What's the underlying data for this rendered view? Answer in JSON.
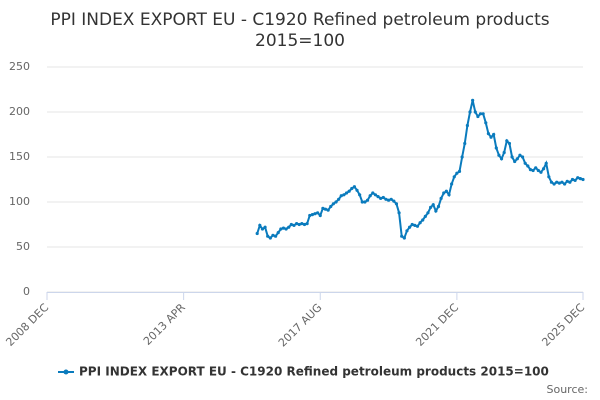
{
  "chart_data": {
    "type": "line",
    "title": "PPI INDEX EXPORT EU - C1920 Refined petroleum products",
    "subtitle": "2015=100",
    "source": "Source:",
    "x": [
      "2015-08",
      "2015-09",
      "2015-10",
      "2015-11",
      "2015-12",
      "2016-01",
      "2016-02",
      "2016-03",
      "2016-04",
      "2016-05",
      "2016-06",
      "2016-07",
      "2016-08",
      "2016-09",
      "2016-10",
      "2016-11",
      "2016-12",
      "2017-01",
      "2017-02",
      "2017-03",
      "2017-04",
      "2017-05",
      "2017-06",
      "2017-07",
      "2017-08",
      "2017-09",
      "2017-10",
      "2017-11",
      "2017-12",
      "2018-01",
      "2018-02",
      "2018-03",
      "2018-04",
      "2018-05",
      "2018-06",
      "2018-07",
      "2018-08",
      "2018-09",
      "2018-10",
      "2018-11",
      "2018-12",
      "2019-01",
      "2019-02",
      "2019-03",
      "2019-04",
      "2019-05",
      "2019-06",
      "2019-07",
      "2019-08",
      "2019-09",
      "2019-10",
      "2019-11",
      "2019-12",
      "2020-01",
      "2020-02",
      "2020-03",
      "2020-04",
      "2020-05",
      "2020-06",
      "2020-07",
      "2020-08",
      "2020-09",
      "2020-10",
      "2020-11",
      "2020-12",
      "2021-01",
      "2021-02",
      "2021-03",
      "2021-04",
      "2021-05",
      "2021-06",
      "2021-07",
      "2021-08",
      "2021-09",
      "2021-10",
      "2021-11",
      "2021-12",
      "2022-01",
      "2022-02",
      "2022-03",
      "2022-04",
      "2022-05",
      "2022-06",
      "2022-07",
      "2022-08",
      "2022-09",
      "2022-10",
      "2022-11",
      "2022-12",
      "2023-01",
      "2023-02",
      "2023-03",
      "2023-04",
      "2023-05",
      "2023-06",
      "2023-07",
      "2023-08",
      "2023-09",
      "2023-10",
      "2023-11",
      "2023-12",
      "2024-01",
      "2024-02",
      "2024-03",
      "2024-04",
      "2024-05",
      "2024-06",
      "2024-07",
      "2024-08",
      "2024-09",
      "2024-10",
      "2024-11",
      "2024-12",
      "2025-01",
      "2025-02",
      "2025-03",
      "2025-04",
      "2025-05",
      "2025-06",
      "2025-07",
      "2025-08",
      "2025-09",
      "2025-10",
      "2025-11",
      "2025-12"
    ],
    "series": [
      {
        "name": "PPI INDEX EXPORT EU - C1920 Refined petroleum products 2015=100",
        "color": "#0a7bbd",
        "values": [
          65,
          74,
          70,
          72,
          62,
          60,
          63,
          62,
          66,
          70,
          71,
          70,
          72,
          75,
          74,
          76,
          75,
          76,
          75,
          76,
          85,
          86,
          87,
          88,
          85,
          93,
          92,
          91,
          95,
          98,
          100,
          103,
          107,
          108,
          110,
          112,
          115,
          117,
          113,
          108,
          100,
          100,
          102,
          107,
          110,
          108,
          106,
          104,
          105,
          103,
          102,
          103,
          101,
          98,
          88,
          62,
          60,
          68,
          72,
          75,
          74,
          73,
          77,
          80,
          84,
          88,
          94,
          97,
          90,
          95,
          104,
          110,
          112,
          108,
          120,
          128,
          132,
          134,
          150,
          165,
          185,
          200,
          213,
          200,
          195,
          198,
          198,
          188,
          176,
          172,
          175,
          160,
          152,
          148,
          155,
          168,
          165,
          150,
          145,
          148,
          152,
          150,
          143,
          140,
          136,
          135,
          138,
          135,
          133,
          137,
          143,
          128,
          122,
          120,
          122,
          121,
          122,
          120,
          123,
          122,
          125,
          124,
          127,
          126,
          125
        ]
      }
    ],
    "xlim": [
      "2008-12",
      "2025-12"
    ],
    "xticks": [
      {
        "value": "2008-12",
        "label": "2008 DEC"
      },
      {
        "value": "2013-04",
        "label": "2013 APR"
      },
      {
        "value": "2017-08",
        "label": "2017 AUG"
      },
      {
        "value": "2021-12",
        "label": "2021 DEC"
      },
      {
        "value": "2025-12",
        "label": "2025 DEC"
      }
    ],
    "ylim": [
      0,
      250
    ],
    "yticks": [
      0,
      50,
      100,
      150,
      200,
      250
    ],
    "grid": true
  }
}
